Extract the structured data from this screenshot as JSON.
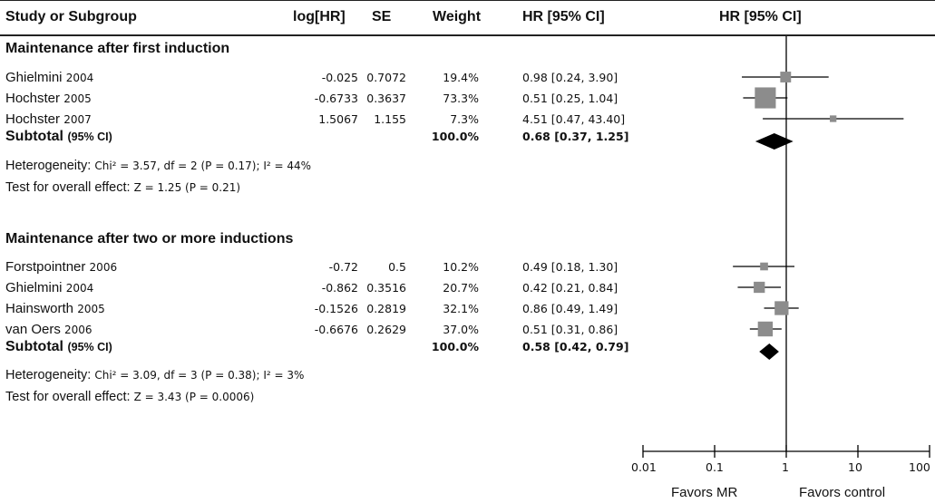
{
  "columns": {
    "study": "Study or Subgroup",
    "loghr": "log[HR]",
    "se": "SE",
    "weight": "Weight",
    "hr_text": "HR [95% CI]",
    "hr_plot": "HR [95% CI]"
  },
  "groups": [
    {
      "title": "Maintenance after first induction",
      "studies": [
        {
          "name": "Ghielmini",
          "year": "2004",
          "loghr": "-0.025",
          "se": "0.7072",
          "weight": "19.4%",
          "ci": "0.98 [0.24, 3.90]"
        },
        {
          "name": "Hochster",
          "year": "2005",
          "loghr": "-0.6733",
          "se": "0.3637",
          "weight": "73.3%",
          "ci": "0.51 [0.25, 1.04]"
        },
        {
          "name": "Hochster",
          "year": "2007",
          "loghr": "1.5067",
          "se": "1.155",
          "weight": "7.3%",
          "ci": "4.51 [0.47, 43.40]"
        }
      ],
      "subtotal": {
        "label": "Subtotal",
        "label_small": "(95% CI)",
        "weight": "100.0%",
        "ci": "0.68 [0.37, 1.25]"
      },
      "heterogeneity": {
        "label": "Heterogeneity:",
        "value": "Chi² = 3.57, df = 2 (P = 0.17); I² = 44%"
      },
      "overall": {
        "label": "Test for overall effect:",
        "value": "Z = 1.25 (P = 0.21)"
      }
    },
    {
      "title": "Maintenance after two or more inductions",
      "studies": [
        {
          "name": "Forstpointner",
          "year": "2006",
          "loghr": "-0.72",
          "se": "0.5",
          "weight": "10.2%",
          "ci": "0.49 [0.18, 1.30]"
        },
        {
          "name": "Ghielmini",
          "year": "2004",
          "loghr": "-0.862",
          "se": "0.3516",
          "weight": "20.7%",
          "ci": "0.42 [0.21, 0.84]"
        },
        {
          "name": "Hainsworth",
          "year": "2005",
          "loghr": "-0.1526",
          "se": "0.2819",
          "weight": "32.1%",
          "ci": "0.86 [0.49, 1.49]"
        },
        {
          "name": "van Oers",
          "year": "2006",
          "loghr": "-0.6676",
          "se": "0.2629",
          "weight": "37.0%",
          "ci": "0.51 [0.31, 0.86]"
        }
      ],
      "subtotal": {
        "label": "Subtotal",
        "label_small": "(95% CI)",
        "weight": "100.0%",
        "ci": "0.58 [0.42, 0.79]"
      },
      "heterogeneity": {
        "label": "Heterogeneity:",
        "value": "Chi² = 3.09, df = 3 (P = 0.38); I² = 3%"
      },
      "overall": {
        "label": "Test for overall effect:",
        "value": "Z = 3.43 (P = 0.0006)"
      }
    }
  ],
  "axis": {
    "ticks": [
      "0.01",
      "0.1",
      "1",
      "10",
      "100"
    ],
    "favors_left": "Favors MR",
    "favors_right": "Favors control"
  },
  "colors": {
    "study_marker": "#8c8c8c",
    "diamond": "#000000",
    "line": "#000000"
  },
  "chart_data": {
    "type": "forest",
    "scale": "log",
    "xlim": [
      0.01,
      100
    ],
    "reference_line": 1,
    "x_ticks": [
      0.01,
      0.1,
      1,
      10,
      100
    ],
    "x_tick_labels": [
      "0.01",
      "0.1",
      "1",
      "10",
      "100"
    ],
    "title": "HR [95% CI]",
    "xlabel_left": "Favors MR",
    "xlabel_right": "Favors control",
    "series": [
      {
        "name": "Maintenance after first induction",
        "studies": [
          {
            "label": "Ghielmini 2004",
            "hr": 0.98,
            "lower": 0.24,
            "upper": 3.9,
            "weight": 19.4
          },
          {
            "label": "Hochster 2005",
            "hr": 0.51,
            "lower": 0.25,
            "upper": 1.04,
            "weight": 73.3
          },
          {
            "label": "Hochster 2007",
            "hr": 4.51,
            "lower": 0.47,
            "upper": 43.4,
            "weight": 7.3
          }
        ],
        "subtotal": {
          "hr": 0.68,
          "lower": 0.37,
          "upper": 1.25
        }
      },
      {
        "name": "Maintenance after two or more inductions",
        "studies": [
          {
            "label": "Forstpointner 2006",
            "hr": 0.49,
            "lower": 0.18,
            "upper": 1.3,
            "weight": 10.2
          },
          {
            "label": "Ghielmini 2004",
            "hr": 0.42,
            "lower": 0.21,
            "upper": 0.84,
            "weight": 20.7
          },
          {
            "label": "Hainsworth 2005",
            "hr": 0.86,
            "lower": 0.49,
            "upper": 1.49,
            "weight": 32.1
          },
          {
            "label": "van Oers 2006",
            "hr": 0.51,
            "lower": 0.31,
            "upper": 0.86,
            "weight": 37.0
          }
        ],
        "subtotal": {
          "hr": 0.58,
          "lower": 0.42,
          "upper": 0.79
        }
      }
    ]
  }
}
